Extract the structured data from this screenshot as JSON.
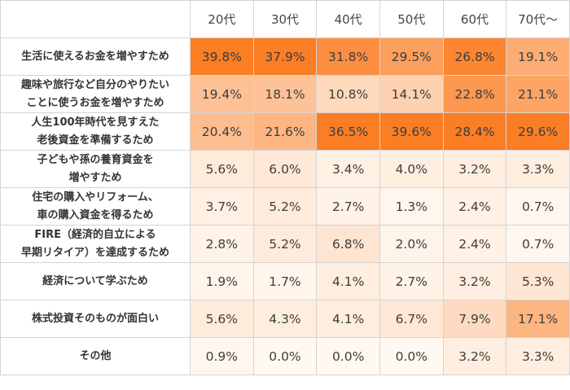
{
  "chart_data": {
    "type": "heatmap",
    "columns": [
      "20代",
      "30代",
      "40代",
      "50代",
      "60代",
      "70代～"
    ],
    "rows": [
      {
        "label": "生活に使えるお金を増やすため",
        "values": [
          "39.8%",
          "37.9%",
          "31.8%",
          "29.5%",
          "26.8%",
          "19.1%"
        ]
      },
      {
        "label": "趣味や旅行など自分のやりたい\nことに使うお金を増やすため",
        "values": [
          "19.4%",
          "18.1%",
          "10.8%",
          "14.1%",
          "22.8%",
          "21.1%"
        ]
      },
      {
        "label": "人生100年時代を見すえた\n老後資金を準備するため",
        "values": [
          "20.4%",
          "21.6%",
          "36.5%",
          "39.6%",
          "28.4%",
          "29.6%"
        ]
      },
      {
        "label": "子どもや孫の養育資金を\n増やすため",
        "values": [
          "5.6%",
          "6.0%",
          "3.4%",
          "4.0%",
          "3.2%",
          "3.3%"
        ]
      },
      {
        "label": "住宅の購入やリフォーム、\n車の購入資金を得るため",
        "values": [
          "3.7%",
          "5.2%",
          "2.7%",
          "1.3%",
          "2.4%",
          "0.7%"
        ]
      },
      {
        "label": "FIRE（経済的自立による\n早期リタイア）を達成するため",
        "values": [
          "2.8%",
          "5.2%",
          "6.8%",
          "2.0%",
          "2.4%",
          "0.7%"
        ]
      },
      {
        "label": "経済について学ぶため",
        "values": [
          "1.9%",
          "1.7%",
          "4.1%",
          "2.7%",
          "3.2%",
          "5.3%"
        ]
      },
      {
        "label": "株式投資そのものが面白い",
        "values": [
          "5.6%",
          "4.3%",
          "4.1%",
          "6.7%",
          "7.9%",
          "17.1%"
        ]
      },
      {
        "label": "その他",
        "values": [
          "0.9%",
          "0.0%",
          "0.0%",
          "0.0%",
          "3.2%",
          "3.3%"
        ]
      }
    ],
    "color_low": "#fff9f2",
    "color_high": "#fb7d24"
  }
}
